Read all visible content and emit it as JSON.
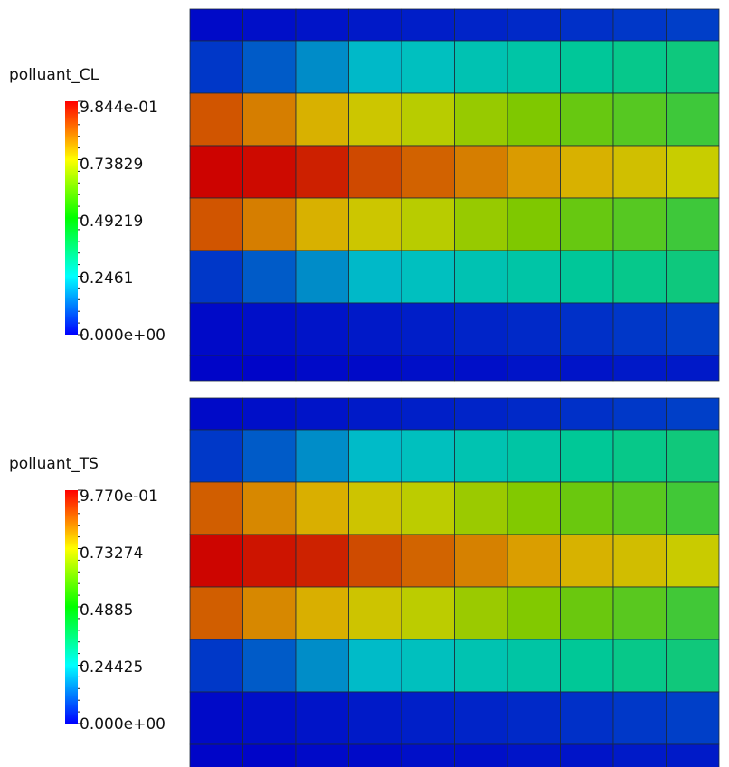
{
  "chart_data": [
    {
      "type": "heatmap",
      "title": "polluant_CL",
      "colorbar": {
        "label": "polluant_CL",
        "min": 0.0,
        "max": 0.9844,
        "tick_labels": [
          "9.844e-01",
          "0.73829",
          "0.49219",
          "0.2461",
          "0.000e+00"
        ],
        "tick_values": [
          0.9844,
          0.73829,
          0.49219,
          0.2461,
          0.0
        ],
        "colormap": "rainbow (blue-cyan-green-yellow-red)"
      },
      "grid": true,
      "values": [
        [
          0.02,
          0.03,
          0.04,
          0.05,
          0.06,
          0.07,
          0.08,
          0.09,
          0.1,
          0.11
        ],
        [
          0.1,
          0.15,
          0.21,
          0.26,
          0.28,
          0.3,
          0.32,
          0.34,
          0.36,
          0.38
        ],
        [
          0.86,
          0.8,
          0.72,
          0.66,
          0.62,
          0.58,
          0.55,
          0.52,
          0.5,
          0.47
        ],
        [
          0.98,
          0.97,
          0.94,
          0.88,
          0.84,
          0.8,
          0.76,
          0.72,
          0.68,
          0.64
        ],
        [
          0.86,
          0.8,
          0.72,
          0.66,
          0.62,
          0.58,
          0.55,
          0.52,
          0.5,
          0.47
        ],
        [
          0.1,
          0.15,
          0.21,
          0.26,
          0.28,
          0.3,
          0.32,
          0.34,
          0.36,
          0.38
        ],
        [
          0.02,
          0.03,
          0.04,
          0.05,
          0.06,
          0.07,
          0.08,
          0.09,
          0.1,
          0.11
        ],
        [
          0.01,
          0.01,
          0.02,
          0.02,
          0.03,
          0.03,
          0.04,
          0.04,
          0.05,
          0.05
        ]
      ]
    },
    {
      "type": "heatmap",
      "title": "polluant_TS",
      "colorbar": {
        "label": "polluant_TS",
        "min": 0.0,
        "max": 0.977,
        "tick_labels": [
          "9.770e-01",
          "0.73274",
          "0.4885",
          "0.24425",
          "0.000e+00"
        ],
        "tick_values": [
          0.977,
          0.73274,
          0.4885,
          0.24425,
          0.0
        ],
        "colormap": "rainbow (blue-cyan-green-yellow-red)"
      },
      "grid": true,
      "values": [
        [
          0.02,
          0.03,
          0.04,
          0.05,
          0.06,
          0.07,
          0.08,
          0.09,
          0.1,
          0.11
        ],
        [
          0.1,
          0.15,
          0.21,
          0.26,
          0.28,
          0.3,
          0.32,
          0.34,
          0.36,
          0.38
        ],
        [
          0.84,
          0.78,
          0.72,
          0.66,
          0.62,
          0.58,
          0.55,
          0.52,
          0.5,
          0.47
        ],
        [
          0.97,
          0.95,
          0.93,
          0.87,
          0.83,
          0.79,
          0.75,
          0.71,
          0.68,
          0.64
        ],
        [
          0.84,
          0.78,
          0.72,
          0.66,
          0.62,
          0.58,
          0.55,
          0.52,
          0.5,
          0.47
        ],
        [
          0.1,
          0.15,
          0.21,
          0.26,
          0.28,
          0.3,
          0.32,
          0.34,
          0.36,
          0.38
        ],
        [
          0.02,
          0.03,
          0.04,
          0.05,
          0.06,
          0.07,
          0.08,
          0.09,
          0.1,
          0.11
        ],
        [
          0.01,
          0.01,
          0.02,
          0.02,
          0.03,
          0.03,
          0.04,
          0.04,
          0.05,
          0.05
        ]
      ]
    }
  ]
}
